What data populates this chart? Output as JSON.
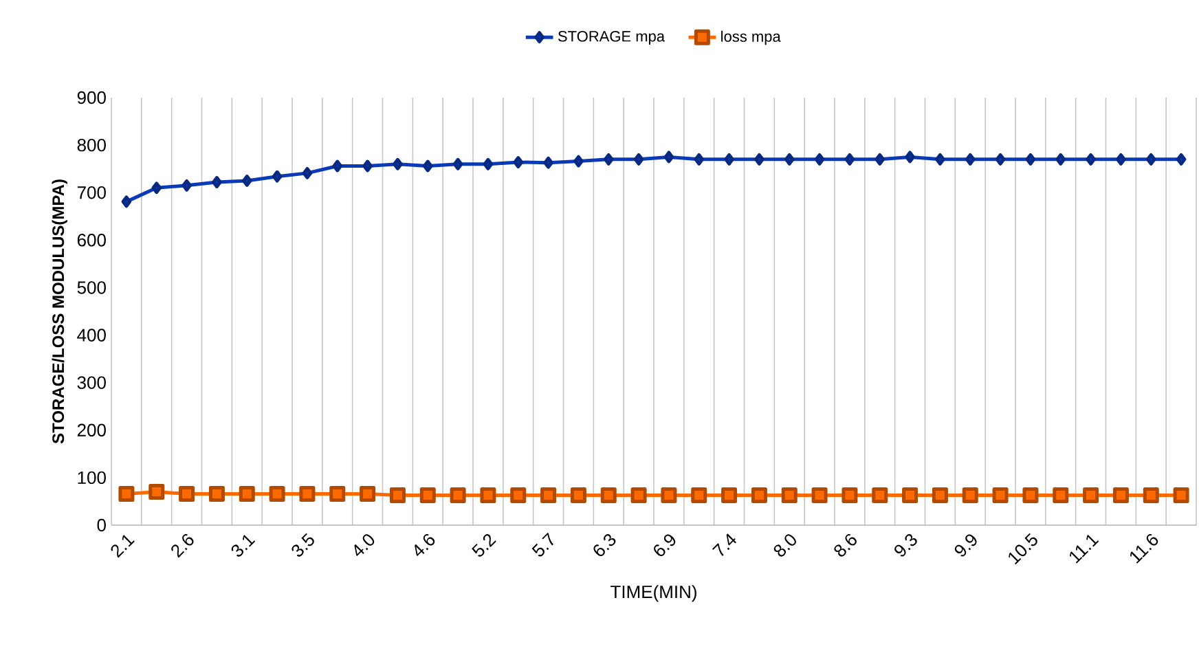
{
  "chart_data": {
    "type": "line",
    "xlabel": "TIME(MIN)",
    "ylabel": "STORAGE/LOSS MODULUS(MPA)",
    "categories": [
      "2.1",
      null,
      "2.6",
      null,
      "3.1",
      null,
      "3.5",
      null,
      "4.0",
      null,
      "4.6",
      null,
      "5.2",
      null,
      "5.7",
      null,
      "6.3",
      null,
      "6.9",
      null,
      "7.4",
      null,
      "8.0",
      null,
      "8.6",
      null,
      "9.3",
      null,
      "9.9",
      null,
      "10.5",
      null,
      "11.1",
      null,
      "11.6",
      null
    ],
    "series": [
      {
        "name": "STORAGE mpa",
        "color": "#0a3ab8",
        "marker": "diamond",
        "values": [
          681,
          710,
          715,
          722,
          725,
          734,
          741,
          756,
          756,
          760,
          756,
          760,
          760,
          764,
          763,
          766,
          770,
          770,
          775,
          770,
          770,
          770,
          770,
          770,
          770,
          770,
          775,
          770,
          770,
          770,
          770,
          770,
          770,
          770,
          770,
          770
        ]
      },
      {
        "name": "loss mpa",
        "color": "#ff6a00",
        "marker": "square",
        "values": [
          66,
          70,
          66,
          66,
          66,
          66,
          66,
          66,
          66,
          63,
          63,
          63,
          63,
          63,
          63,
          63,
          63,
          63,
          63,
          63,
          63,
          63,
          63,
          63,
          63,
          63,
          63,
          63,
          63,
          63,
          63,
          63,
          63,
          63,
          63,
          63
        ]
      }
    ],
    "ylim": [
      0,
      900
    ],
    "yticks": [
      0,
      100,
      200,
      300,
      400,
      500,
      600,
      700,
      800,
      900
    ],
    "grid": "x",
    "legend": "top"
  }
}
